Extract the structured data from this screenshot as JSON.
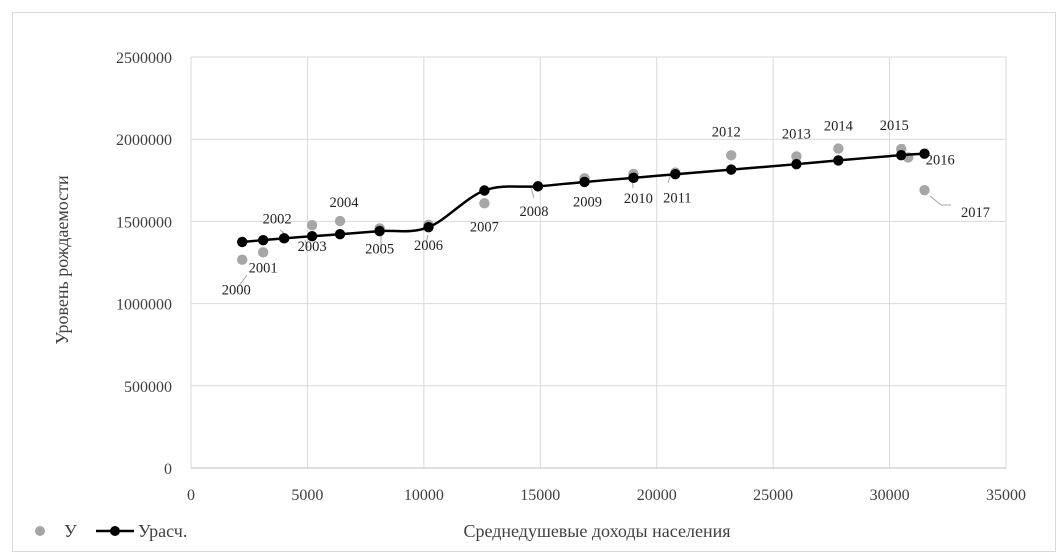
{
  "chart_data": {
    "type": "scatter",
    "xlabel": "Среднедушевые доходы населения",
    "ylabel": "Уровень рождаемости",
    "xlim": [
      0,
      35000
    ],
    "ylim": [
      0,
      2500000
    ],
    "x_ticks": [
      "0",
      "5000",
      "10000",
      "15000",
      "20000",
      "25000",
      "30000",
      "35000"
    ],
    "y_ticks": [
      "0",
      "500000",
      "1000000",
      "1500000",
      "2000000",
      "2500000"
    ],
    "grid": true,
    "legend_position": "bottom-left",
    "series": [
      {
        "name": "У",
        "kind": "scatter",
        "color": "#a6a6a6",
        "points": [
          {
            "label": "2000",
            "x": 2200,
            "y": 1267000
          },
          {
            "label": "2001",
            "x": 3100,
            "y": 1312000
          },
          {
            "label": "2002",
            "x": 4000,
            "y": 1397000
          },
          {
            "label": "2003",
            "x": 5200,
            "y": 1477000
          },
          {
            "label": "2004",
            "x": 6400,
            "y": 1502000
          },
          {
            "label": "2005",
            "x": 8100,
            "y": 1457000
          },
          {
            "label": "2006",
            "x": 10200,
            "y": 1479000
          },
          {
            "label": "2007",
            "x": 12600,
            "y": 1610000
          },
          {
            "label": "2008",
            "x": 14900,
            "y": 1714000
          },
          {
            "label": "2009",
            "x": 16900,
            "y": 1762000
          },
          {
            "label": "2010",
            "x": 19000,
            "y": 1789000
          },
          {
            "label": "2011",
            "x": 20800,
            "y": 1797000
          },
          {
            "label": "2012",
            "x": 23200,
            "y": 1902000
          },
          {
            "label": "2013",
            "x": 26000,
            "y": 1895000
          },
          {
            "label": "2014",
            "x": 27800,
            "y": 1943000
          },
          {
            "label": "2015",
            "x": 30500,
            "y": 1940000
          },
          {
            "label": "2016",
            "x": 30800,
            "y": 1889000
          },
          {
            "label": "2017",
            "x": 31500,
            "y": 1690000
          }
        ]
      },
      {
        "name": "Урасч.",
        "kind": "line",
        "color": "#000000",
        "points": [
          {
            "x": 2200,
            "y": 1375000
          },
          {
            "x": 3100,
            "y": 1386000
          },
          {
            "x": 4000,
            "y": 1397000
          },
          {
            "x": 5200,
            "y": 1410000
          },
          {
            "x": 6400,
            "y": 1422000
          },
          {
            "x": 8100,
            "y": 1441000
          },
          {
            "x": 10200,
            "y": 1465000
          },
          {
            "x": 12600,
            "y": 1688000
          },
          {
            "x": 14900,
            "y": 1713000
          },
          {
            "x": 16900,
            "y": 1740000
          },
          {
            "x": 19000,
            "y": 1765000
          },
          {
            "x": 20800,
            "y": 1787000
          },
          {
            "x": 23200,
            "y": 1815000
          },
          {
            "x": 26000,
            "y": 1848000
          },
          {
            "x": 27800,
            "y": 1871000
          },
          {
            "x": 30500,
            "y": 1903000
          },
          {
            "x": 31500,
            "y": 1912000
          }
        ]
      }
    ]
  }
}
